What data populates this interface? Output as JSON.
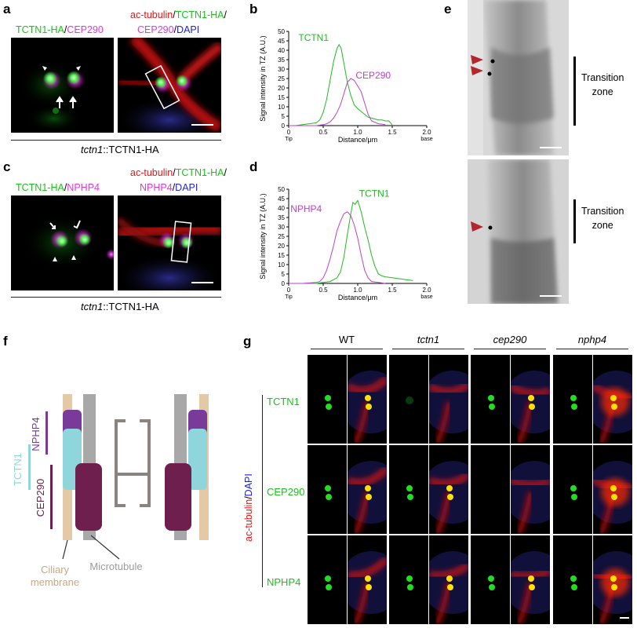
{
  "panels": {
    "a": "a",
    "b": "b",
    "c": "c",
    "d": "d",
    "e": "e",
    "f": "f",
    "g": "g"
  },
  "a": {
    "left_label_1": "TCTN1-HA",
    "left_label_sep": "/",
    "left_label_2": "CEP290",
    "right_line1_1": "ac-tubulin",
    "right_line1_sep": "/",
    "right_line1_2": "TCTN1-HA",
    "right_line1_end": "/",
    "right_line2_1": "CEP290",
    "right_line2_sep": "/",
    "right_line2_2": "DAPI",
    "caption_italic": "tctn1",
    "caption_rest": "::TCTN1-HA"
  },
  "c": {
    "left_label_1": "TCTN1-HA",
    "left_label_sep": "/",
    "left_label_2": "NPHP4",
    "right_line1_1": "ac-tubulin",
    "right_line1_sep": "/",
    "right_line1_2": "TCTN1-HA",
    "right_line1_end": "/",
    "right_line2_1": "NPHP4",
    "right_line2_sep": "/",
    "right_line2_2": "DAPI",
    "caption_italic": "tctn1",
    "caption_rest": "::TCTN1-HA"
  },
  "e": {
    "label_top": [
      "Transition",
      "zone"
    ],
    "label_bottom": [
      "Transition",
      "zone"
    ]
  },
  "f": {
    "labels": {
      "nphp4": "NPHP4",
      "tctn1": "TCTN1",
      "cep290": "CEP290",
      "ciliary": [
        "Ciliary",
        "membrane"
      ],
      "microtubule": "Microtubule"
    },
    "colors": {
      "nphp4": "#7a3a9a",
      "tctn1": "#8fd6dc",
      "cep290": "#6e1f4e",
      "membrane": "#e3c9a6",
      "microtubule": "#a8a8a8"
    }
  },
  "g": {
    "columns": [
      "WT",
      "tctn1",
      "cep290",
      "nphp4"
    ],
    "rows": [
      "TCTN1",
      "CEP290",
      "NPHP4"
    ],
    "side_label_1": "ac-tubulin",
    "side_label_sep": "/",
    "side_label_2": "DAPI"
  },
  "chart_data": [
    {
      "type": "line",
      "panel": "b",
      "ylabel": "Signal intensity in TZ (A.U.)",
      "xlabel": "Distance/μm",
      "x_tick_labels": [
        "0",
        "0.5",
        "1.0",
        "1.5",
        "2.0"
      ],
      "x_end_labels": [
        "Tip",
        "base"
      ],
      "y_tick_labels": [
        "0",
        "5",
        "10",
        "15",
        "20",
        "25",
        "30",
        "35",
        "40",
        "45",
        "50"
      ],
      "xlim": [
        0,
        2.0
      ],
      "ylim": [
        0,
        50
      ],
      "series": [
        {
          "name": "TCTN1",
          "color": "#22b822",
          "x": [
            0,
            0.1,
            0.2,
            0.3,
            0.4,
            0.45,
            0.5,
            0.55,
            0.6,
            0.65,
            0.7,
            0.73,
            0.76,
            0.8,
            0.85,
            0.9,
            0.95,
            1.0,
            1.05,
            1.1,
            1.15,
            1.2,
            1.25,
            1.3,
            1.35,
            1.4,
            1.45,
            1.5
          ],
          "y": [
            0,
            0,
            0.5,
            1,
            1.5,
            3,
            7,
            14,
            24,
            34,
            41,
            43,
            41,
            33,
            23,
            16,
            11,
            9,
            7.5,
            6,
            4.5,
            4,
            3.5,
            3,
            3,
            2.5,
            2.5,
            0.5
          ]
        },
        {
          "name": "CEP290",
          "color": "#b842c8",
          "x": [
            0,
            0.2,
            0.4,
            0.5,
            0.55,
            0.6,
            0.65,
            0.7,
            0.75,
            0.8,
            0.85,
            0.9,
            0.95,
            1.0,
            1.05,
            1.1,
            1.15,
            1.2,
            1.3,
            1.4
          ],
          "y": [
            0,
            0,
            0,
            0.5,
            1,
            2,
            4,
            7,
            11,
            17,
            23,
            25,
            24,
            21,
            18,
            12,
            6,
            2.5,
            1,
            0.5
          ]
        }
      ]
    },
    {
      "type": "line",
      "panel": "d",
      "ylabel": "Signal intensity in TZ (A.U.)",
      "xlabel": "Distance/μm",
      "x_tick_labels": [
        "0",
        "0.5",
        "1.0",
        "1.5",
        "2.0"
      ],
      "x_end_labels": [
        "Tip",
        "base"
      ],
      "y_tick_labels": [
        "0",
        "5",
        "10",
        "15",
        "20",
        "25",
        "30",
        "35",
        "40",
        "45",
        "50"
      ],
      "xlim": [
        0,
        2.0
      ],
      "ylim": [
        0,
        50
      ],
      "series": [
        {
          "name": "TCTN1",
          "color": "#22b822",
          "x": [
            0,
            0.2,
            0.4,
            0.5,
            0.6,
            0.65,
            0.7,
            0.75,
            0.8,
            0.85,
            0.9,
            0.93,
            0.96,
            1.0,
            1.05,
            1.1,
            1.15,
            1.2,
            1.25,
            1.3,
            1.35,
            1.4,
            1.5,
            1.6,
            1.7,
            1.8
          ],
          "y": [
            0,
            0,
            0,
            0.5,
            1,
            2,
            3,
            6,
            14,
            26,
            37,
            43,
            42,
            44,
            38,
            30,
            23,
            15,
            9,
            5,
            4,
            3.5,
            3,
            2.5,
            2,
            1.5
          ]
        },
        {
          "name": "NPHP4",
          "color": "#b842c8",
          "x": [
            0,
            0.2,
            0.4,
            0.45,
            0.5,
            0.55,
            0.6,
            0.65,
            0.7,
            0.75,
            0.8,
            0.85,
            0.9,
            0.95,
            1.0,
            1.05,
            1.1,
            1.15,
            1.2,
            1.3,
            1.4
          ],
          "y": [
            0,
            0,
            0.5,
            1,
            3,
            7,
            13,
            20,
            28,
            33,
            37,
            38,
            36,
            31,
            24,
            15,
            7,
            3,
            1,
            0.5,
            0
          ]
        }
      ]
    }
  ]
}
